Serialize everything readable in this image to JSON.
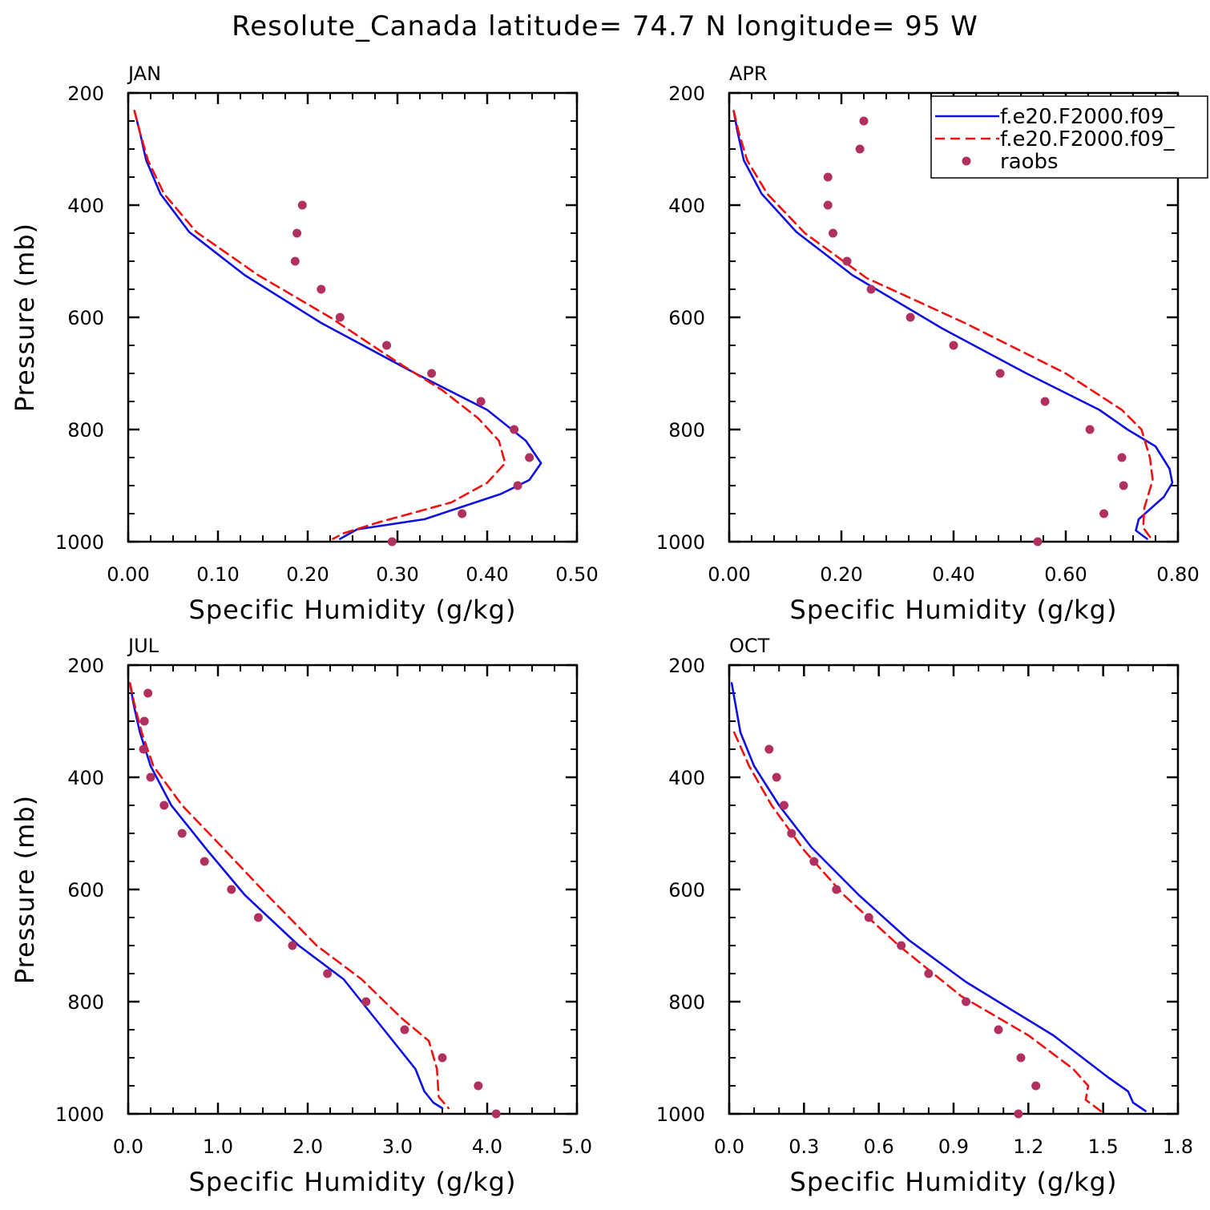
{
  "title": "Resolute_Canada  latitude= 74.7 N longitude= 95 W",
  "colors": {
    "model1": "#1010e0",
    "model2": "#ee1111",
    "obs": "#b03060"
  },
  "legend": {
    "entries": [
      "f.e20.F2000.f09_",
      "f.e20.F2000.f09_",
      "raobs"
    ]
  },
  "chart_data": [
    {
      "type": "line",
      "panel": "JAN",
      "xlabel": "Specific Humidity (g/kg)",
      "ylabel": "Pressure (mb)",
      "xlim": [
        0,
        0.5
      ],
      "ylim": [
        200,
        1000
      ],
      "y_inverted": true,
      "xticks": [
        "0.00",
        "0.10",
        "0.20",
        "0.30",
        "0.40",
        "0.50"
      ],
      "yticks": [
        "200",
        "400",
        "600",
        "800",
        "1000"
      ],
      "series": [
        {
          "style": "solid",
          "color": "model1",
          "points": [
            [
              0.007,
              232
            ],
            [
              0.013,
              270
            ],
            [
              0.02,
              320
            ],
            [
              0.036,
              380
            ],
            [
              0.068,
              448
            ],
            [
              0.13,
              525
            ],
            [
              0.215,
              610
            ],
            [
              0.32,
              700
            ],
            [
              0.4,
              765
            ],
            [
              0.443,
              820
            ],
            [
              0.46,
              860
            ],
            [
              0.447,
              890
            ],
            [
              0.415,
              915
            ],
            [
              0.33,
              960
            ],
            [
              0.255,
              978
            ],
            [
              0.236,
              995
            ]
          ]
        },
        {
          "style": "dashed",
          "color": "model2",
          "points": [
            [
              0.007,
              232
            ],
            [
              0.013,
              270
            ],
            [
              0.022,
              320
            ],
            [
              0.04,
              380
            ],
            [
              0.076,
              448
            ],
            [
              0.145,
              525
            ],
            [
              0.225,
              600
            ],
            [
              0.3,
              680
            ],
            [
              0.35,
              730
            ],
            [
              0.39,
              780
            ],
            [
              0.413,
              820
            ],
            [
              0.42,
              860
            ],
            [
              0.4,
              895
            ],
            [
              0.36,
              930
            ],
            [
              0.28,
              965
            ],
            [
              0.24,
              985
            ],
            [
              0.228,
              995
            ]
          ]
        },
        {
          "style": "points",
          "color": "obs",
          "points": [
            [
              0.194,
              400
            ],
            [
              0.188,
              450
            ],
            [
              0.186,
              500
            ],
            [
              0.215,
              550
            ],
            [
              0.236,
              600
            ],
            [
              0.288,
              650
            ],
            [
              0.338,
              700
            ],
            [
              0.393,
              750
            ],
            [
              0.43,
              800
            ],
            [
              0.447,
              850
            ],
            [
              0.434,
              900
            ],
            [
              0.372,
              950
            ],
            [
              0.294,
              1000
            ]
          ]
        }
      ]
    },
    {
      "type": "line",
      "panel": "APR",
      "xlabel": "Specific Humidity (g/kg)",
      "ylabel": "",
      "xlim": [
        0,
        0.8
      ],
      "ylim": [
        200,
        1000
      ],
      "y_inverted": true,
      "xticks": [
        "0.00",
        "0.20",
        "0.40",
        "0.60",
        "0.80"
      ],
      "yticks": [
        "200",
        "400",
        "600",
        "800",
        "1000"
      ],
      "series": [
        {
          "style": "solid",
          "color": "model1",
          "points": [
            [
              0.008,
              232
            ],
            [
              0.015,
              270
            ],
            [
              0.026,
              320
            ],
            [
              0.058,
              380
            ],
            [
              0.12,
              448
            ],
            [
              0.22,
              525
            ],
            [
              0.38,
              620
            ],
            [
              0.53,
              700
            ],
            [
              0.66,
              765
            ],
            [
              0.71,
              800
            ],
            [
              0.76,
              830
            ],
            [
              0.785,
              870
            ],
            [
              0.79,
              895
            ],
            [
              0.775,
              920
            ],
            [
              0.73,
              960
            ],
            [
              0.725,
              980
            ],
            [
              0.745,
              995
            ]
          ]
        },
        {
          "style": "dashed",
          "color": "model2",
          "points": [
            [
              0.008,
              232
            ],
            [
              0.017,
              270
            ],
            [
              0.032,
              320
            ],
            [
              0.068,
              380
            ],
            [
              0.135,
              450
            ],
            [
              0.245,
              530
            ],
            [
              0.42,
              610
            ],
            [
              0.6,
              700
            ],
            [
              0.7,
              765
            ],
            [
              0.735,
              800
            ],
            [
              0.75,
              850
            ],
            [
              0.755,
              890
            ],
            [
              0.74,
              940
            ],
            [
              0.738,
              975
            ],
            [
              0.755,
              998
            ]
          ]
        },
        {
          "style": "points",
          "color": "obs",
          "points": [
            [
              0.24,
              250
            ],
            [
              0.233,
              300
            ],
            [
              0.176,
              350
            ],
            [
              0.176,
              400
            ],
            [
              0.185,
              450
            ],
            [
              0.21,
              500
            ],
            [
              0.253,
              550
            ],
            [
              0.323,
              600
            ],
            [
              0.4,
              650
            ],
            [
              0.483,
              700
            ],
            [
              0.563,
              750
            ],
            [
              0.643,
              800
            ],
            [
              0.7,
              850
            ],
            [
              0.703,
              900
            ],
            [
              0.668,
              950
            ],
            [
              0.55,
              1000
            ]
          ]
        }
      ]
    },
    {
      "type": "line",
      "panel": "JUL",
      "xlabel": "Specific Humidity (g/kg)",
      "ylabel": "Pressure (mb)",
      "xlim": [
        0,
        5
      ],
      "ylim": [
        200,
        1000
      ],
      "y_inverted": true,
      "xticks": [
        "0.0",
        "1.0",
        "2.0",
        "3.0",
        "4.0",
        "5.0"
      ],
      "yticks": [
        "200",
        "400",
        "600",
        "800",
        "1000"
      ],
      "series": [
        {
          "style": "solid",
          "color": "model1",
          "points": [
            [
              0.02,
              232
            ],
            [
              0.06,
              270
            ],
            [
              0.13,
              320
            ],
            [
              0.25,
              380
            ],
            [
              0.48,
              450
            ],
            [
              0.88,
              530
            ],
            [
              1.3,
              610
            ],
            [
              1.9,
              700
            ],
            [
              2.4,
              760
            ],
            [
              2.75,
              830
            ],
            [
              3.0,
              880
            ],
            [
              3.2,
              920
            ],
            [
              3.3,
              960
            ],
            [
              3.4,
              980
            ],
            [
              3.5,
              990
            ]
          ]
        },
        {
          "style": "dashed",
          "color": "model2",
          "points": [
            [
              0.02,
              232
            ],
            [
              0.07,
              270
            ],
            [
              0.15,
              320
            ],
            [
              0.28,
              380
            ],
            [
              0.6,
              450
            ],
            [
              1.02,
              520
            ],
            [
              1.55,
              610
            ],
            [
              2.1,
              700
            ],
            [
              2.6,
              760
            ],
            [
              3.05,
              830
            ],
            [
              3.35,
              870
            ],
            [
              3.44,
              920
            ],
            [
              3.46,
              970
            ],
            [
              3.57,
              990
            ]
          ]
        },
        {
          "style": "points",
          "color": "obs",
          "points": [
            [
              0.22,
              250
            ],
            [
              0.18,
              300
            ],
            [
              0.17,
              350
            ],
            [
              0.25,
              400
            ],
            [
              0.4,
              450
            ],
            [
              0.6,
              500
            ],
            [
              0.85,
              550
            ],
            [
              1.15,
              600
            ],
            [
              1.45,
              650
            ],
            [
              1.83,
              700
            ],
            [
              2.22,
              750
            ],
            [
              2.65,
              800
            ],
            [
              3.08,
              850
            ],
            [
              3.5,
              900
            ],
            [
              3.9,
              950
            ],
            [
              4.1,
              1000
            ]
          ]
        }
      ]
    },
    {
      "type": "line",
      "panel": "OCT",
      "xlabel": "Specific Humidity (g/kg)",
      "ylabel": "",
      "xlim": [
        0,
        1.8
      ],
      "ylim": [
        200,
        1000
      ],
      "y_inverted": true,
      "xticks": [
        "0.0",
        "0.3",
        "0.6",
        "0.9",
        "1.2",
        "1.5",
        "1.8"
      ],
      "yticks": [
        "200",
        "400",
        "600",
        "800",
        "1000"
      ],
      "series": [
        {
          "style": "solid",
          "color": "model1",
          "points": [
            [
              0.01,
              232
            ],
            [
              0.025,
              270
            ],
            [
              0.045,
              320
            ],
            [
              0.1,
              380
            ],
            [
              0.2,
              450
            ],
            [
              0.33,
              525
            ],
            [
              0.52,
              610
            ],
            [
              0.72,
              690
            ],
            [
              0.95,
              765
            ],
            [
              1.3,
              860
            ],
            [
              1.52,
              935
            ],
            [
              1.6,
              960
            ],
            [
              1.62,
              980
            ],
            [
              1.67,
              995
            ]
          ]
        },
        {
          "style": "dashed",
          "color": "model2",
          "points": [
            [
              0.02,
              320
            ],
            [
              0.08,
              380
            ],
            [
              0.17,
              450
            ],
            [
              0.3,
              530
            ],
            [
              0.46,
              610
            ],
            [
              0.68,
              700
            ],
            [
              0.93,
              790
            ],
            [
              1.2,
              860
            ],
            [
              1.38,
              920
            ],
            [
              1.44,
              950
            ],
            [
              1.43,
              975
            ],
            [
              1.49,
              995
            ]
          ]
        },
        {
          "style": "points",
          "color": "obs",
          "points": [
            [
              0.16,
              350
            ],
            [
              0.19,
              400
            ],
            [
              0.22,
              450
            ],
            [
              0.25,
              500
            ],
            [
              0.34,
              550
            ],
            [
              0.43,
              600
            ],
            [
              0.56,
              650
            ],
            [
              0.69,
              700
            ],
            [
              0.8,
              750
            ],
            [
              0.95,
              800
            ],
            [
              1.08,
              850
            ],
            [
              1.17,
              900
            ],
            [
              1.23,
              950
            ],
            [
              1.16,
              1000
            ]
          ]
        }
      ]
    }
  ]
}
